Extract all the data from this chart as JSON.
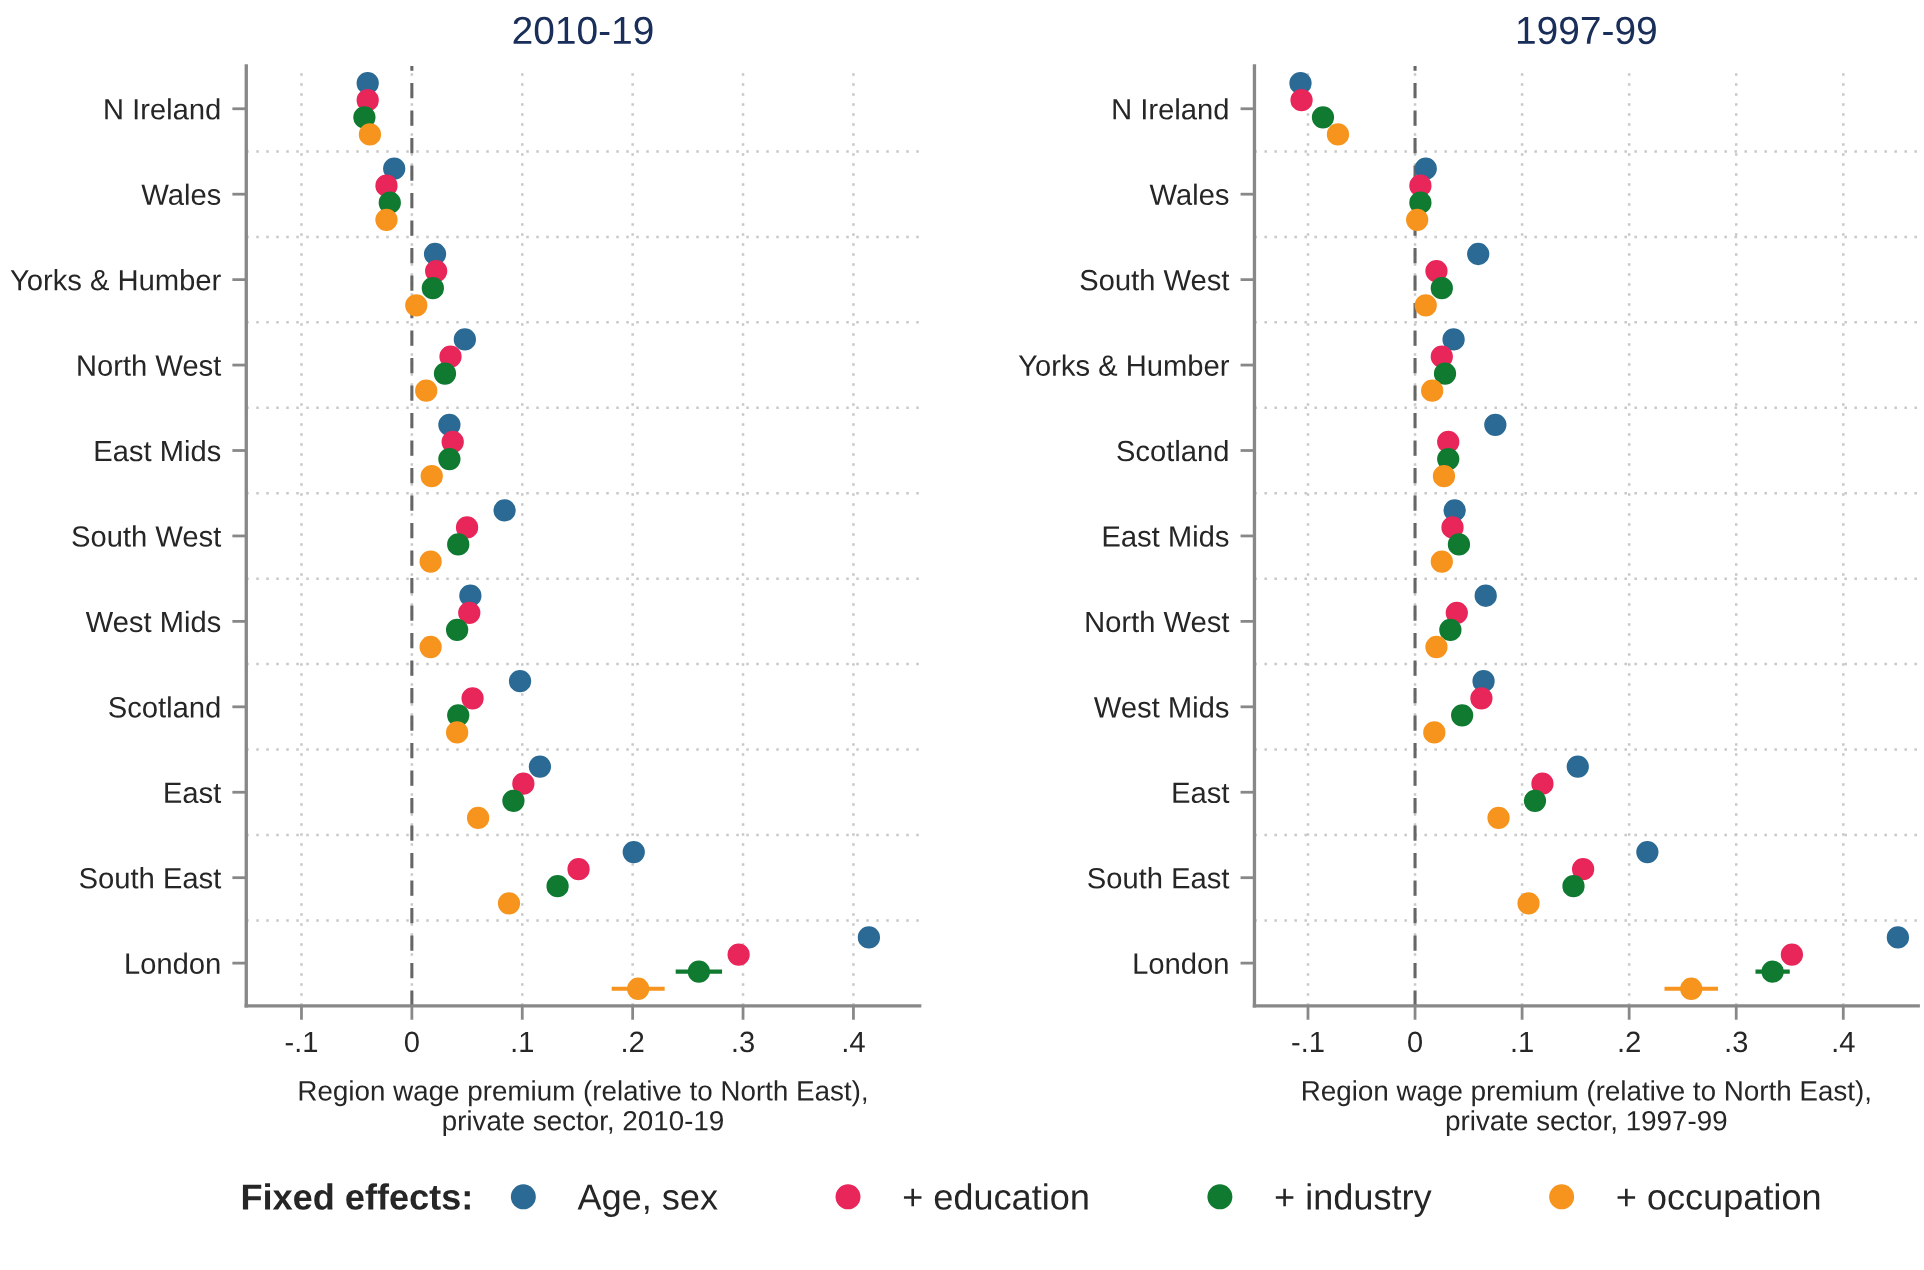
{
  "chart_data": [
    {
      "type": "scatter",
      "orientation": "horizontal",
      "title": "2010-19",
      "xlabel": "Region wage premium (relative to North East),\nprivate sector, 2010-19",
      "legend_title": "Fixed effects:",
      "legend": "bottom",
      "grid": true,
      "marker": "circle",
      "categories": [
        "N Ireland",
        "Wales",
        "Yorks & Humber",
        "North West",
        "East Mids",
        "South West",
        "West Mids",
        "Scotland",
        "East",
        "South East",
        "London"
      ],
      "xlim": [
        -0.15,
        0.46
      ],
      "xticks": [
        {
          "value": -0.1,
          "label": "-.1"
        },
        0,
        {
          "value": 0.1,
          "label": ".1"
        },
        {
          "value": 0.2,
          "label": ".2"
        },
        {
          "value": 0.3,
          "label": ".3"
        },
        {
          "value": 0.4,
          "label": ".4"
        }
      ],
      "ref_lines": [
        {
          "axis": "x",
          "value": 0,
          "color": "#666666",
          "line_style": "dashed"
        }
      ],
      "series": [
        {
          "name": "Age, sex",
          "color": "#2b6a94",
          "values": [
            -0.04,
            -0.016,
            0.021,
            0.048,
            0.034,
            0.084,
            0.053,
            0.098,
            0.116,
            0.201,
            0.414
          ]
        },
        {
          "name": "+ education",
          "color": "#e8265a",
          "values": [
            -0.04,
            -0.023,
            0.022,
            0.035,
            0.037,
            0.05,
            0.052,
            0.055,
            0.101,
            0.151,
            0.296
          ]
        },
        {
          "name": "+ industry",
          "color": "#0f7a30",
          "values": [
            -0.043,
            -0.02,
            0.019,
            0.03,
            0.034,
            0.042,
            0.041,
            0.042,
            0.092,
            0.132,
            0.26
          ],
          "errors": [
            null,
            null,
            null,
            null,
            null,
            null,
            null,
            null,
            null,
            null,
            0.021
          ]
        },
        {
          "name": "+ occupation",
          "color": "#f7941d",
          "values": [
            -0.038,
            -0.023,
            0.004,
            0.013,
            0.018,
            0.017,
            0.017,
            0.041,
            0.06,
            0.088,
            0.205
          ],
          "errors": [
            null,
            null,
            null,
            null,
            null,
            null,
            null,
            null,
            null,
            null,
            0.024
          ]
        }
      ]
    },
    {
      "type": "scatter",
      "orientation": "horizontal",
      "title": "1997-99",
      "xlabel": "Region wage premium (relative to North East),\nprivate sector, 1997-99",
      "grid": true,
      "marker": "circle",
      "categories": [
        "N Ireland",
        "Wales",
        "South West",
        "Yorks & Humber",
        "Scotland",
        "East Mids",
        "North West",
        "West Mids",
        "East",
        "South East",
        "London"
      ],
      "xlim": [
        -0.15,
        0.47
      ],
      "xticks": [
        {
          "value": -0.1,
          "label": "-.1"
        },
        0,
        {
          "value": 0.1,
          "label": ".1"
        },
        {
          "value": 0.2,
          "label": ".2"
        },
        {
          "value": 0.3,
          "label": ".3"
        },
        {
          "value": 0.4,
          "label": ".4"
        }
      ],
      "ref_lines": [
        {
          "axis": "x",
          "value": 0,
          "color": "#666666",
          "line_style": "dashed"
        }
      ],
      "series": [
        {
          "color": "#2b6a94",
          "values": [
            -0.107,
            0.01,
            0.059,
            0.036,
            0.075,
            0.037,
            0.066,
            0.064,
            0.152,
            0.217,
            0.451
          ]
        },
        {
          "color": "#e8265a",
          "values": [
            -0.106,
            0.005,
            0.02,
            0.025,
            0.031,
            0.035,
            0.039,
            0.062,
            0.119,
            0.157,
            0.352
          ]
        },
        {
          "color": "#0f7a30",
          "values": [
            -0.086,
            0.005,
            0.025,
            0.028,
            0.031,
            0.041,
            0.033,
            0.044,
            0.112,
            0.148,
            0.334
          ],
          "errors": [
            null,
            null,
            null,
            null,
            null,
            null,
            null,
            null,
            null,
            null,
            0.016
          ]
        },
        {
          "color": "#f7941d",
          "values": [
            -0.072,
            0.002,
            0.01,
            0.016,
            0.027,
            0.025,
            0.02,
            0.018,
            0.078,
            0.106,
            0.258
          ],
          "errors": [
            null,
            null,
            null,
            null,
            null,
            null,
            null,
            null,
            null,
            0.008,
            0.025
          ]
        }
      ]
    }
  ]
}
